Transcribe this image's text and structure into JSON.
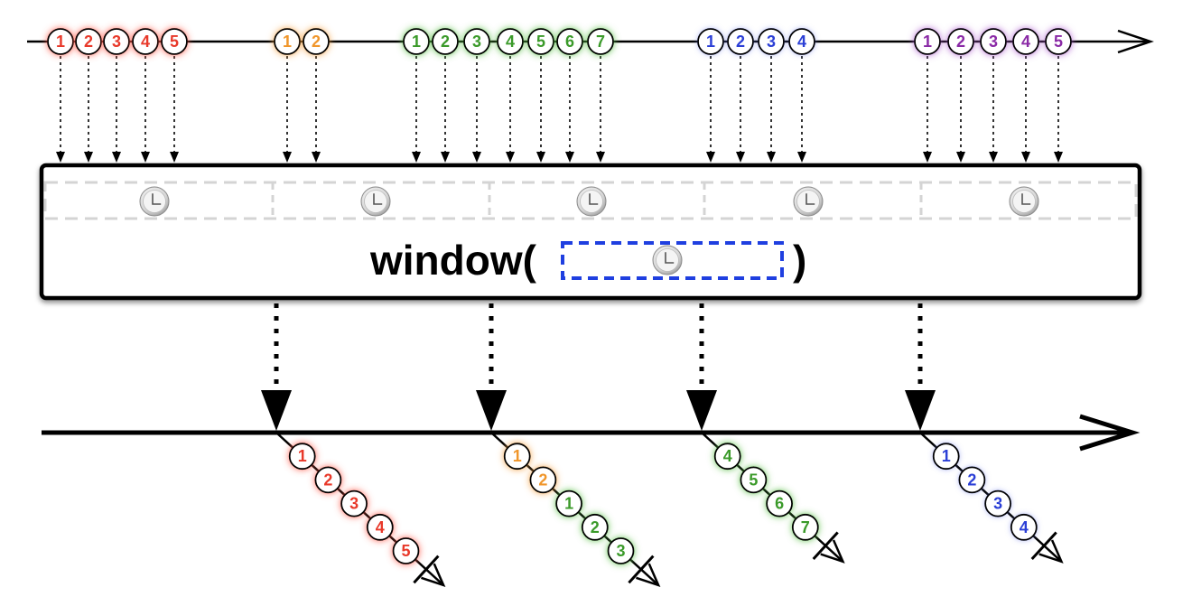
{
  "operator": {
    "name": "window(",
    "close_paren": ")",
    "argument_icon": "clock-icon"
  },
  "colors": {
    "red": "#e8392a",
    "orange": "#f0962b",
    "green": "#3b9a2a",
    "blue": "#2b3fd6",
    "purple": "#8a2aa6",
    "dash_blue": "#1f3fe0",
    "clock_face": "#dddddd"
  },
  "source": {
    "groups": [
      {
        "color": "red",
        "items": [
          "1",
          "2",
          "3",
          "4",
          "5"
        ]
      },
      {
        "color": "orange",
        "items": [
          "1",
          "2"
        ]
      },
      {
        "color": "green",
        "items": [
          "1",
          "2",
          "3",
          "4",
          "5",
          "6",
          "7"
        ]
      },
      {
        "color": "blue",
        "items": [
          "1",
          "2",
          "3",
          "4"
        ]
      },
      {
        "color": "purple",
        "items": [
          "1",
          "2",
          "3",
          "4",
          "5"
        ]
      }
    ]
  },
  "timespan_clocks": 5,
  "output_windows": [
    {
      "items": [
        {
          "label": "1",
          "color": "red"
        },
        {
          "label": "2",
          "color": "red"
        },
        {
          "label": "3",
          "color": "red"
        },
        {
          "label": "4",
          "color": "red"
        },
        {
          "label": "5",
          "color": "red"
        }
      ]
    },
    {
      "items": [
        {
          "label": "1",
          "color": "orange"
        },
        {
          "label": "2",
          "color": "orange"
        },
        {
          "label": "1",
          "color": "green"
        },
        {
          "label": "2",
          "color": "green"
        },
        {
          "label": "3",
          "color": "green"
        }
      ]
    },
    {
      "items": [
        {
          "label": "4",
          "color": "green"
        },
        {
          "label": "5",
          "color": "green"
        },
        {
          "label": "6",
          "color": "green"
        },
        {
          "label": "7",
          "color": "green"
        }
      ]
    },
    {
      "items": [
        {
          "label": "1",
          "color": "blue"
        },
        {
          "label": "2",
          "color": "blue"
        },
        {
          "label": "3",
          "color": "blue"
        },
        {
          "label": "4",
          "color": "blue"
        }
      ]
    }
  ]
}
